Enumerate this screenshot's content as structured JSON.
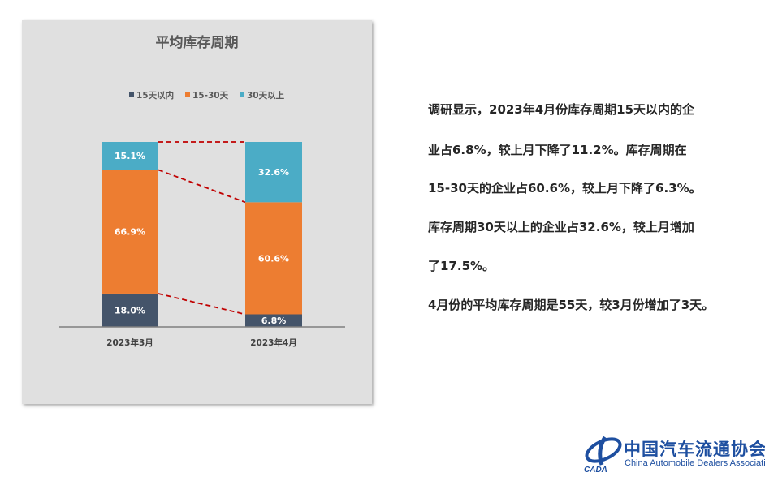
{
  "chart_data": {
    "type": "bar",
    "stacked": true,
    "percent_stacked": true,
    "title": "平均库存周期",
    "categories": [
      "2023年3月",
      "2023年4月"
    ],
    "series": [
      {
        "name": "15天以内",
        "color": "#44546a",
        "values": [
          18.0,
          6.8
        ],
        "labels": [
          "18.0%",
          "6.8%"
        ]
      },
      {
        "name": "15-30天",
        "color": "#ed7d31",
        "values": [
          66.9,
          60.6
        ],
        "labels": [
          "66.9%",
          "60.6%"
        ]
      },
      {
        "name": "30天以上",
        "color": "#4bacc6",
        "values": [
          15.1,
          32.6
        ],
        "labels": [
          "15.1%",
          "32.6%"
        ]
      }
    ],
    "ylim": [
      0,
      100
    ],
    "grid": false,
    "legend": "top",
    "series_lines": {
      "style": "dashed",
      "color": "#c00000"
    },
    "background": "#e0e0e0"
  },
  "text": {
    "lines": [
      "调研显示，2023年4月份库存周期15天以内的企",
      "业占6.8%，较上月下降了11.2%。库存周期在",
      "15-30天的企业占60.6%，较上月下降了6.3%。",
      "库存周期30天以上的企业占32.6%，较上月增加",
      "了17.5%。",
      "4月份的平均库存周期是55天，较3月份增加了3天。"
    ]
  },
  "logo": {
    "name_cn": "中国汽车流通协会",
    "name_en": "China Automobile Dealers Association",
    "abbr": "CADA",
    "color": "#1e4fa0"
  }
}
